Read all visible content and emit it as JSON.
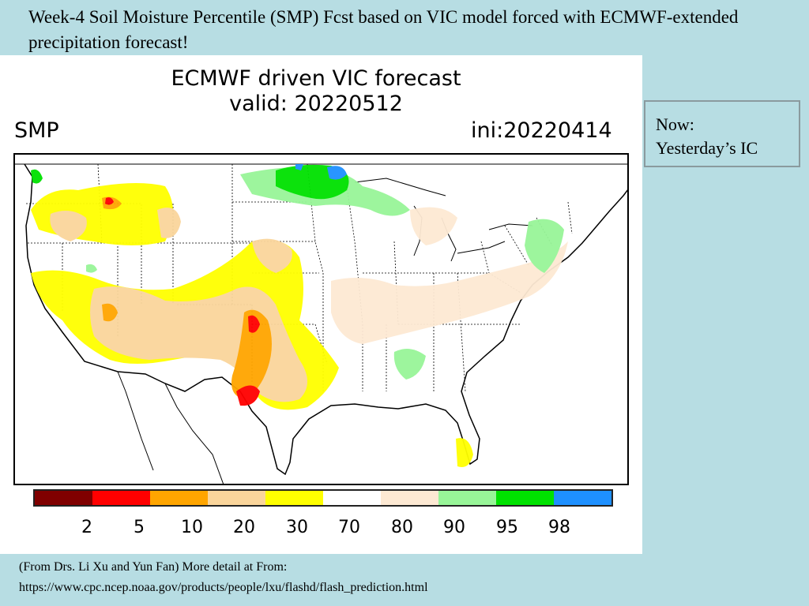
{
  "slide": {
    "title": "Week-4 Soil Moisture Percentile (SMP) Fcst based on VIC model forced with ECMWF-extended precipitation forecast!"
  },
  "map": {
    "title_line1": "ECMWF driven VIC forecast",
    "title_line2": "valid: 20220512",
    "variable_label": "SMP",
    "init_label": "ini:20220414"
  },
  "legend": {
    "colors": [
      "#800000",
      "#ff0000",
      "#ffa500",
      "#fad59b",
      "#ffff00",
      "#ffffff",
      "#fde9d3",
      "#98f598",
      "#00e100",
      "#1e90ff"
    ],
    "ticks": [
      "2",
      "5",
      "10",
      "20",
      "30",
      "70",
      "80",
      "90",
      "95",
      "98"
    ]
  },
  "note": {
    "line1": "Now:",
    "line2": "Yesterday’s IC"
  },
  "footer": {
    "line1": "(From Drs. Li Xu and Yun Fan)  More detail at From:",
    "line2": "https://www.cpc.ncep.noaa.gov/products/people/lxu/flashd/flash_prediction.html"
  }
}
